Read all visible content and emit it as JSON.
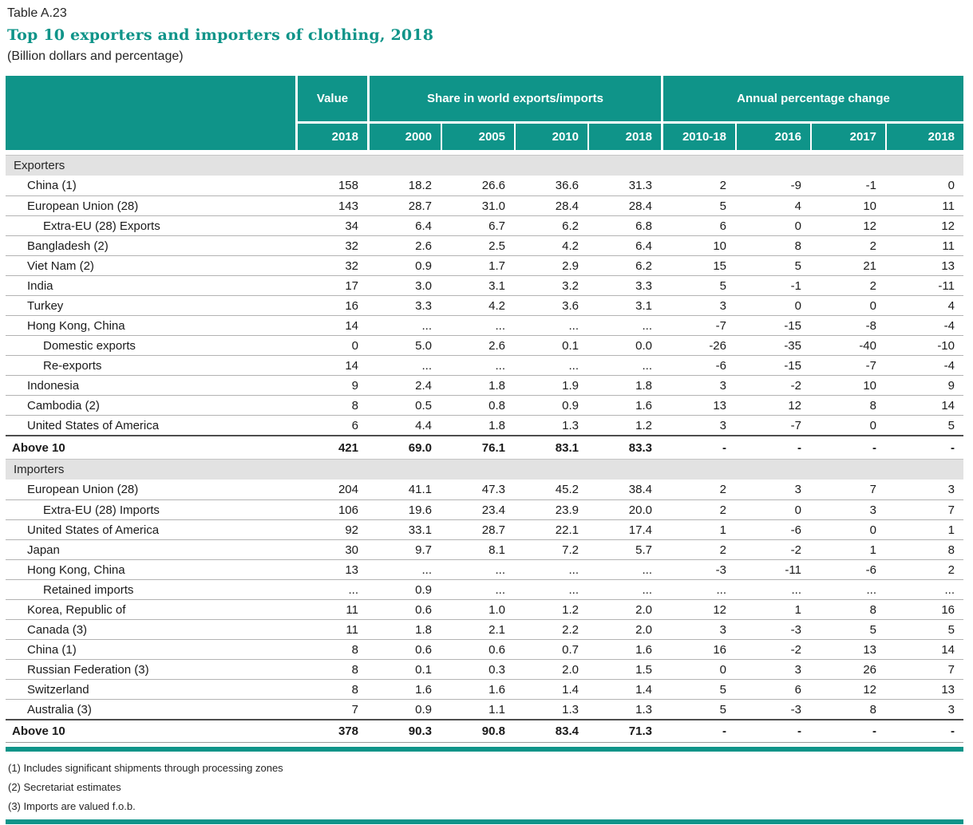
{
  "page": {
    "table_label": "Table A.23",
    "title": "Top 10 exporters and importers of clothing, 2018",
    "subtitle": "(Billion dollars and percentage)"
  },
  "colors": {
    "teal": "#0f9489",
    "section_band": "#e2e2e2",
    "row_line": "#b3b3b3",
    "total_line": "#4d4d4d"
  },
  "table": {
    "header": {
      "value_group": "Value",
      "share_group": "Share in world exports/imports",
      "annual_group": "Annual percentage change",
      "value_years": [
        "2018"
      ],
      "share_years": [
        "2000",
        "2005",
        "2010",
        "2018"
      ],
      "annual_years": [
        "2010-18",
        "2016",
        "2017",
        "2018"
      ]
    },
    "sections": [
      {
        "label": "Exporters",
        "rows": [
          {
            "name": "China (1)",
            "indent": 1,
            "values": [
              "158",
              "18.2",
              "26.6",
              "36.6",
              "31.3",
              "2",
              "-9",
              "-1",
              "0"
            ]
          },
          {
            "name": "European Union (28)",
            "indent": 1,
            "values": [
              "143",
              "28.7",
              "31.0",
              "28.4",
              "28.4",
              "5",
              "4",
              "10",
              "11"
            ]
          },
          {
            "name": "Extra-EU (28) Exports",
            "indent": 2,
            "values": [
              "34",
              "6.4",
              "6.7",
              "6.2",
              "6.8",
              "6",
              "0",
              "12",
              "12"
            ]
          },
          {
            "name": "Bangladesh (2)",
            "indent": 1,
            "values": [
              "32",
              "2.6",
              "2.5",
              "4.2",
              "6.4",
              "10",
              "8",
              "2",
              "11"
            ]
          },
          {
            "name": "Viet Nam (2)",
            "indent": 1,
            "values": [
              "32",
              "0.9",
              "1.7",
              "2.9",
              "6.2",
              "15",
              "5",
              "21",
              "13"
            ]
          },
          {
            "name": "India",
            "indent": 1,
            "values": [
              "17",
              "3.0",
              "3.1",
              "3.2",
              "3.3",
              "5",
              "-1",
              "2",
              "-11"
            ]
          },
          {
            "name": "Turkey",
            "indent": 1,
            "values": [
              "16",
              "3.3",
              "4.2",
              "3.6",
              "3.1",
              "3",
              "0",
              "0",
              "4"
            ]
          },
          {
            "name": "Hong Kong, China",
            "indent": 1,
            "values": [
              "14",
              "...",
              "...",
              "...",
              "...",
              "-7",
              "-15",
              "-8",
              "-4"
            ]
          },
          {
            "name": "Domestic exports",
            "indent": 2,
            "values": [
              "0",
              "5.0",
              "2.6",
              "0.1",
              "0.0",
              "-26",
              "-35",
              "-40",
              "-10"
            ]
          },
          {
            "name": "Re-exports",
            "indent": 2,
            "values": [
              "14",
              "...",
              "...",
              "...",
              "...",
              "-6",
              "-15",
              "-7",
              "-4"
            ]
          },
          {
            "name": "Indonesia",
            "indent": 1,
            "values": [
              "9",
              "2.4",
              "1.8",
              "1.9",
              "1.8",
              "3",
              "-2",
              "10",
              "9"
            ]
          },
          {
            "name": "Cambodia (2)",
            "indent": 1,
            "values": [
              "8",
              "0.5",
              "0.8",
              "0.9",
              "1.6",
              "13",
              "12",
              "8",
              "14"
            ]
          },
          {
            "name": "United States of America",
            "indent": 1,
            "values": [
              "6",
              "4.4",
              "1.8",
              "1.3",
              "1.2",
              "3",
              "-7",
              "0",
              "5"
            ]
          }
        ],
        "total": {
          "name": "Above 10",
          "indent": 0,
          "values": [
            "421",
            "69.0",
            "76.1",
            "83.1",
            "83.3",
            "-",
            "-",
            "-",
            "-"
          ]
        }
      },
      {
        "label": "Importers",
        "rows": [
          {
            "name": "European Union (28)",
            "indent": 1,
            "values": [
              "204",
              "41.1",
              "47.3",
              "45.2",
              "38.4",
              "2",
              "3",
              "7",
              "3"
            ]
          },
          {
            "name": "Extra-EU (28) Imports",
            "indent": 2,
            "values": [
              "106",
              "19.6",
              "23.4",
              "23.9",
              "20.0",
              "2",
              "0",
              "3",
              "7"
            ]
          },
          {
            "name": "United States of America",
            "indent": 1,
            "values": [
              "92",
              "33.1",
              "28.7",
              "22.1",
              "17.4",
              "1",
              "-6",
              "0",
              "1"
            ]
          },
          {
            "name": "Japan",
            "indent": 1,
            "values": [
              "30",
              "9.7",
              "8.1",
              "7.2",
              "5.7",
              "2",
              "-2",
              "1",
              "8"
            ]
          },
          {
            "name": "Hong Kong, China",
            "indent": 1,
            "values": [
              "13",
              "...",
              "...",
              "...",
              "...",
              "-3",
              "-11",
              "-6",
              "2"
            ]
          },
          {
            "name": "Retained imports",
            "indent": 2,
            "values": [
              "...",
              "0.9",
              "...",
              "...",
              "...",
              "...",
              "...",
              "...",
              "..."
            ]
          },
          {
            "name": "Korea, Republic of",
            "indent": 1,
            "values": [
              "11",
              "0.6",
              "1.0",
              "1.2",
              "2.0",
              "12",
              "1",
              "8",
              "16"
            ]
          },
          {
            "name": "Canada (3)",
            "indent": 1,
            "values": [
              "11",
              "1.8",
              "2.1",
              "2.2",
              "2.0",
              "3",
              "-3",
              "5",
              "5"
            ]
          },
          {
            "name": "China (1)",
            "indent": 1,
            "values": [
              "8",
              "0.6",
              "0.6",
              "0.7",
              "1.6",
              "16",
              "-2",
              "13",
              "14"
            ]
          },
          {
            "name": "Russian Federation (3)",
            "indent": 1,
            "values": [
              "8",
              "0.1",
              "0.3",
              "2.0",
              "1.5",
              "0",
              "3",
              "26",
              "7"
            ]
          },
          {
            "name": "Switzerland",
            "indent": 1,
            "values": [
              "8",
              "1.6",
              "1.6",
              "1.4",
              "1.4",
              "5",
              "6",
              "12",
              "13"
            ]
          },
          {
            "name": "Australia (3)",
            "indent": 1,
            "values": [
              "7",
              "0.9",
              "1.1",
              "1.3",
              "1.3",
              "5",
              "-3",
              "8",
              "3"
            ]
          }
        ],
        "total": {
          "name": "Above 10",
          "indent": 0,
          "values": [
            "378",
            "90.3",
            "90.8",
            "83.4",
            "71.3",
            "-",
            "-",
            "-",
            "-"
          ]
        }
      }
    ]
  },
  "footnotes": [
    "(1) Includes significant shipments through processing zones",
    "(2) Secretariat estimates",
    "(3) Imports are valued f.o.b."
  ]
}
